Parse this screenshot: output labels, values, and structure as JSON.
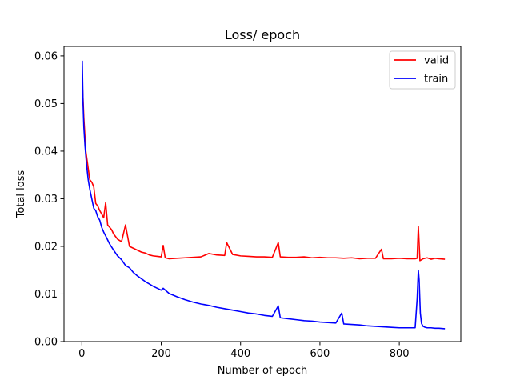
{
  "chart_data": {
    "type": "line",
    "title": "Loss/ epoch",
    "xlabel": "Number of epoch",
    "ylabel": "Total loss",
    "xlim": [
      -45,
      955
    ],
    "ylim": [
      0,
      0.062
    ],
    "xticks": [
      0,
      200,
      400,
      600,
      800
    ],
    "yticks": [
      0.0,
      0.01,
      0.02,
      0.03,
      0.04,
      0.05,
      0.06
    ],
    "xtick_labels": [
      "0",
      "200",
      "400",
      "600",
      "800"
    ],
    "ytick_labels": [
      "0.00",
      "0.01",
      "0.02",
      "0.03",
      "0.04",
      "0.05",
      "0.06"
    ],
    "grid": false,
    "legend_position": "top-right",
    "series": [
      {
        "name": "valid",
        "color": "#ff0000",
        "x": [
          1,
          3,
          5,
          10,
          15,
          20,
          25,
          30,
          35,
          40,
          45,
          50,
          55,
          60,
          65,
          70,
          75,
          80,
          90,
          100,
          110,
          120,
          130,
          140,
          150,
          160,
          170,
          180,
          190,
          200,
          205,
          210,
          220,
          240,
          260,
          280,
          300,
          320,
          340,
          360,
          365,
          380,
          400,
          420,
          440,
          460,
          480,
          495,
          500,
          520,
          540,
          560,
          580,
          600,
          620,
          640,
          660,
          680,
          700,
          720,
          740,
          755,
          760,
          780,
          800,
          820,
          840,
          845,
          848,
          852,
          856,
          860,
          870,
          880,
          890,
          900,
          915
        ],
        "y": [
          0.0545,
          0.051,
          0.047,
          0.04,
          0.037,
          0.034,
          0.0335,
          0.0325,
          0.029,
          0.0285,
          0.0275,
          0.0268,
          0.026,
          0.0292,
          0.0245,
          0.024,
          0.0235,
          0.0226,
          0.0215,
          0.021,
          0.0245,
          0.02,
          0.0196,
          0.0192,
          0.0188,
          0.0186,
          0.0182,
          0.018,
          0.0179,
          0.0178,
          0.0202,
          0.0176,
          0.0174,
          0.0175,
          0.0176,
          0.0177,
          0.0178,
          0.0185,
          0.0182,
          0.0181,
          0.0208,
          0.0183,
          0.018,
          0.0179,
          0.0178,
          0.0178,
          0.0177,
          0.0208,
          0.0178,
          0.0177,
          0.0177,
          0.0178,
          0.0176,
          0.0177,
          0.0176,
          0.0176,
          0.0175,
          0.0176,
          0.0174,
          0.0175,
          0.0175,
          0.0194,
          0.0174,
          0.0174,
          0.0175,
          0.0174,
          0.0174,
          0.0175,
          0.0242,
          0.017,
          0.0172,
          0.0174,
          0.0176,
          0.0173,
          0.0175,
          0.0174,
          0.0173
        ]
      },
      {
        "name": "train",
        "color": "#0000ff",
        "x": [
          1,
          3,
          5,
          8,
          12,
          16,
          20,
          25,
          30,
          35,
          40,
          45,
          50,
          55,
          60,
          70,
          80,
          90,
          100,
          110,
          120,
          130,
          140,
          150,
          160,
          170,
          180,
          190,
          200,
          205,
          220,
          240,
          260,
          280,
          300,
          320,
          340,
          360,
          380,
          400,
          420,
          440,
          460,
          480,
          495,
          500,
          520,
          540,
          560,
          580,
          600,
          620,
          640,
          655,
          660,
          680,
          700,
          720,
          740,
          760,
          780,
          800,
          820,
          840,
          845,
          848,
          850,
          853,
          856,
          860,
          865,
          870,
          880,
          890,
          900,
          915
        ],
        "y": [
          0.059,
          0.05,
          0.045,
          0.041,
          0.037,
          0.034,
          0.032,
          0.03,
          0.028,
          0.0275,
          0.0262,
          0.0255,
          0.024,
          0.023,
          0.0222,
          0.0205,
          0.0192,
          0.018,
          0.0172,
          0.016,
          0.0155,
          0.0145,
          0.0138,
          0.0132,
          0.0126,
          0.0121,
          0.0116,
          0.0112,
          0.0108,
          0.0112,
          0.0101,
          0.0094,
          0.0088,
          0.0083,
          0.0079,
          0.0076,
          0.0072,
          0.0069,
          0.0066,
          0.0063,
          0.006,
          0.0058,
          0.0055,
          0.0053,
          0.0075,
          0.005,
          0.0048,
          0.0046,
          0.0044,
          0.0043,
          0.0041,
          0.004,
          0.0039,
          0.006,
          0.0037,
          0.0036,
          0.0035,
          0.0033,
          0.0032,
          0.0031,
          0.003,
          0.0029,
          0.0029,
          0.0029,
          0.009,
          0.015,
          0.013,
          0.006,
          0.0038,
          0.0032,
          0.003,
          0.0029,
          0.0029,
          0.0028,
          0.0028,
          0.0027
        ]
      }
    ]
  }
}
